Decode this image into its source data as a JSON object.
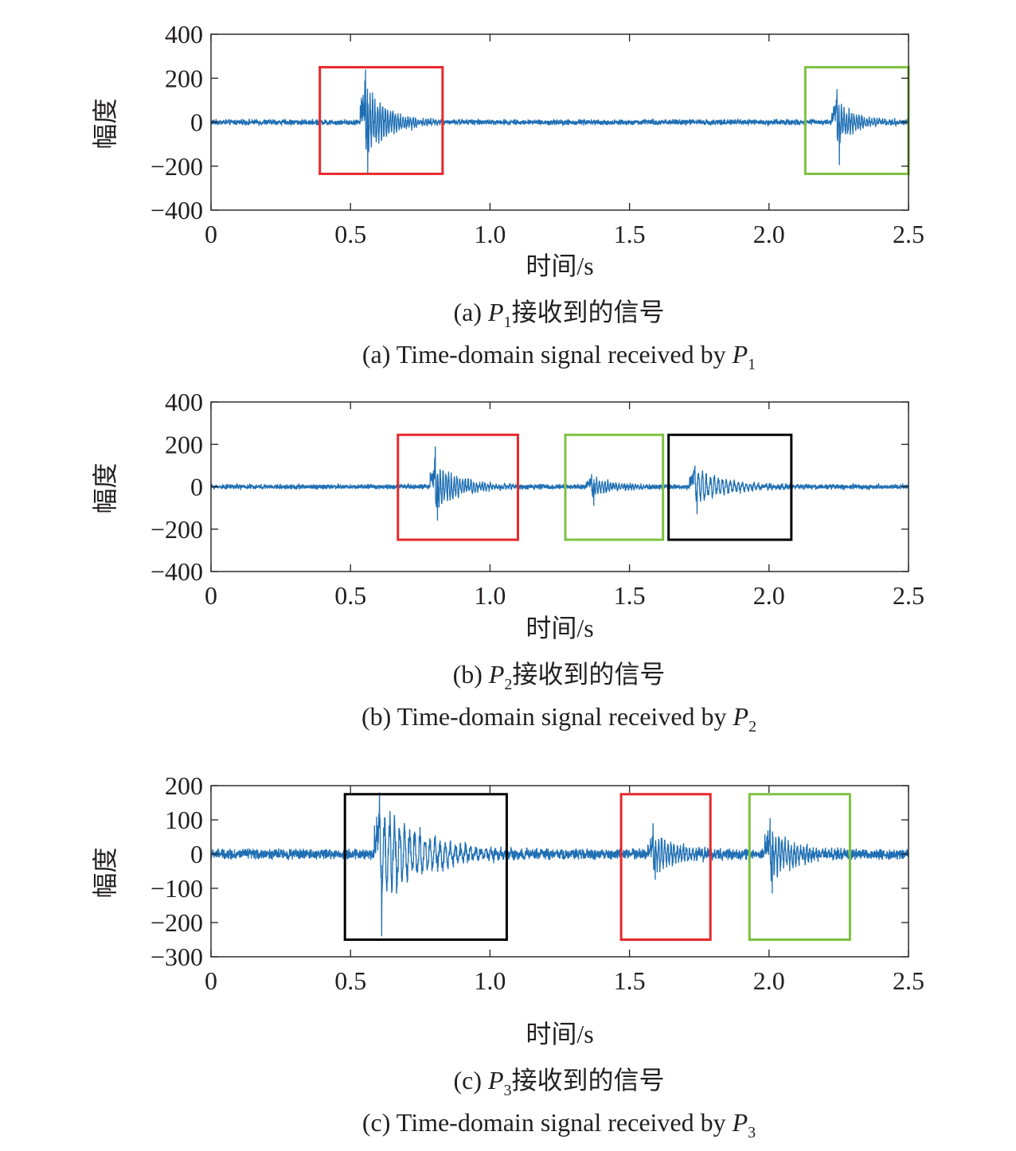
{
  "chart_data": [
    {
      "type": "line",
      "caption_cn": {
        "prefix": "(a) ",
        "sym": "P",
        "sub": "1",
        "rest": "接收到的信号"
      },
      "caption_en": {
        "prefix": "(a) Time-domain signal received by ",
        "sym": "P",
        "sub": "1"
      },
      "xlabel": "时间/s",
      "ylabel": "幅度",
      "xlim": [
        0,
        2.5
      ],
      "ylim": [
        -400,
        400
      ],
      "xticks": [
        0,
        0.5,
        1.0,
        1.5,
        2.0,
        2.5
      ],
      "xtick_labels": [
        "0",
        "0.5",
        "1.0",
        "1.5",
        "2.0",
        "2.5"
      ],
      "yticks": [
        400,
        200,
        0,
        -200,
        -400
      ],
      "ytick_labels": [
        "400",
        "200",
        "0",
        "−200",
        "−400"
      ],
      "series_color": "#1f6fb4",
      "noise_level": 10,
      "bursts": [
        {
          "t0": 0.55,
          "peak_max": 240,
          "peak_min": -235,
          "amp": 170,
          "decay": 0.085,
          "freq": 110
        },
        {
          "t0": 2.24,
          "peak_max": 150,
          "peak_min": -195,
          "amp": 105,
          "decay": 0.07,
          "freq": 110
        }
      ],
      "boxes": [
        {
          "x0": 0.39,
          "x1": 0.83,
          "y0": -235,
          "y1": 250,
          "color": "#e8282b"
        },
        {
          "x0": 2.13,
          "x1": 2.5,
          "y0": -235,
          "y1": 250,
          "color": "#7dc142"
        }
      ]
    },
    {
      "type": "line",
      "caption_cn": {
        "prefix": "(b) ",
        "sym": "P",
        "sub": "2",
        "rest": "接收到的信号"
      },
      "caption_en": {
        "prefix": "(b) Time-domain signal received by ",
        "sym": "P",
        "sub": "2"
      },
      "xlabel": "时间/s",
      "ylabel": "幅度",
      "xlim": [
        0,
        2.5
      ],
      "ylim": [
        -400,
        400
      ],
      "xticks": [
        0,
        0.5,
        1.0,
        1.5,
        2.0,
        2.5
      ],
      "xtick_labels": [
        "0",
        "0.5",
        "1.0",
        "1.5",
        "2.0",
        "2.5"
      ],
      "yticks": [
        400,
        200,
        0,
        -200,
        -400
      ],
      "ytick_labels": [
        "400",
        "200",
        "0",
        "−200",
        "−400"
      ],
      "series_color": "#1f6fb4",
      "noise_level": 9,
      "bursts": [
        {
          "t0": 0.8,
          "peak_max": 190,
          "peak_min": -160,
          "amp": 120,
          "decay": 0.09,
          "freq": 100
        },
        {
          "t0": 1.36,
          "peak_max": 60,
          "peak_min": -90,
          "amp": 45,
          "decay": 0.09,
          "freq": 100
        },
        {
          "t0": 1.73,
          "peak_max": 100,
          "peak_min": -130,
          "amp": 85,
          "decay": 0.12,
          "freq": 70
        }
      ],
      "boxes": [
        {
          "x0": 0.67,
          "x1": 1.1,
          "y0": -250,
          "y1": 245,
          "color": "#e8282b"
        },
        {
          "x0": 1.27,
          "x1": 1.62,
          "y0": -250,
          "y1": 245,
          "color": "#7dc142"
        },
        {
          "x0": 1.64,
          "x1": 2.08,
          "y0": -250,
          "y1": 245,
          "color": "#000000"
        }
      ]
    },
    {
      "type": "line",
      "caption_cn": {
        "prefix": "(c) ",
        "sym": "P",
        "sub": "3",
        "rest": "接收到的信号"
      },
      "caption_en": {
        "prefix": "(c) Time-domain signal received by ",
        "sym": "P",
        "sub": "3"
      },
      "xlabel": "时间/s",
      "ylabel": "幅度",
      "xlim": [
        0,
        2.5
      ],
      "ylim": [
        -300,
        200
      ],
      "xticks": [
        0,
        0.5,
        1.0,
        1.5,
        2.0,
        2.5
      ],
      "xtick_labels": [
        "0",
        "0.5",
        "1.0",
        "1.5",
        "2.0",
        "2.5"
      ],
      "yticks": [
        200,
        100,
        0,
        -100,
        -200,
        -300
      ],
      "ytick_labels": [
        "200",
        "100",
        "0",
        "−100",
        "−200",
        "−300"
      ],
      "series_color": "#1f6fb4",
      "noise_level": 12,
      "bursts": [
        {
          "t0": 0.6,
          "peak_max": 180,
          "peak_min": -240,
          "amp": 150,
          "decay": 0.16,
          "freq": 55
        },
        {
          "t0": 1.58,
          "peak_max": 90,
          "peak_min": -75,
          "amp": 60,
          "decay": 0.1,
          "freq": 90
        },
        {
          "t0": 2.0,
          "peak_max": 105,
          "peak_min": -115,
          "amp": 75,
          "decay": 0.1,
          "freq": 90
        }
      ],
      "boxes": [
        {
          "x0": 0.48,
          "x1": 1.06,
          "y0": -250,
          "y1": 175,
          "color": "#000000"
        },
        {
          "x0": 1.47,
          "x1": 1.79,
          "y0": -250,
          "y1": 175,
          "color": "#e8282b"
        },
        {
          "x0": 1.93,
          "x1": 2.29,
          "y0": -250,
          "y1": 175,
          "color": "#7dc142"
        }
      ]
    }
  ]
}
